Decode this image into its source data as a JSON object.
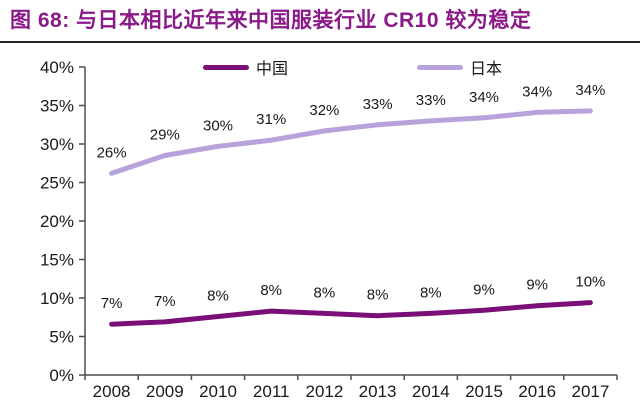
{
  "header": {
    "title": "图 68: 与日本相比近年来中国服装行业 CR10 较为稳定"
  },
  "colors": {
    "title": "#8B1A89",
    "axis": "#4D4D4D",
    "text": "#1A1A1A",
    "background": "#FFFFFF",
    "china_line": "#7A0F77",
    "japan_line": "#B8A2DC"
  },
  "chart_data": {
    "type": "line",
    "title": "图 68: 与日本相比近年来中国服装行业 CR10 较为稳定",
    "categories": [
      "2008",
      "2009",
      "2010",
      "2011",
      "2012",
      "2013",
      "2014",
      "2015",
      "2016",
      "2017"
    ],
    "series": [
      {
        "name": "中国",
        "color": "#7A0F77",
        "values": [
          7,
          7,
          8,
          8,
          8,
          8,
          8,
          9,
          9,
          10
        ],
        "labels": [
          "7%",
          "7%",
          "8%",
          "8%",
          "8%",
          "8%",
          "8%",
          "9%",
          "9%",
          "10%"
        ],
        "plot_values_est": [
          6.6,
          6.9,
          7.6,
          8.3,
          8.0,
          7.7,
          8.0,
          8.4,
          9.0,
          9.4
        ]
      },
      {
        "name": "日本",
        "color": "#B8A2DC",
        "values": [
          26,
          29,
          30,
          31,
          32,
          33,
          33,
          34,
          34,
          34
        ],
        "labels": [
          "26%",
          "29%",
          "30%",
          "31%",
          "32%",
          "33%",
          "33%",
          "34%",
          "34%",
          "34%"
        ],
        "plot_values_est": [
          26.2,
          28.5,
          29.7,
          30.5,
          31.7,
          32.5,
          33.0,
          33.4,
          34.1,
          34.3
        ]
      }
    ],
    "xlabel": "",
    "ylabel": "",
    "ylim": [
      0,
      40
    ],
    "ytick_step": 5,
    "ytick_labels": [
      "0%",
      "5%",
      "10%",
      "15%",
      "20%",
      "25%",
      "30%",
      "35%",
      "40%"
    ],
    "legend_position": "top",
    "grid": false
  }
}
